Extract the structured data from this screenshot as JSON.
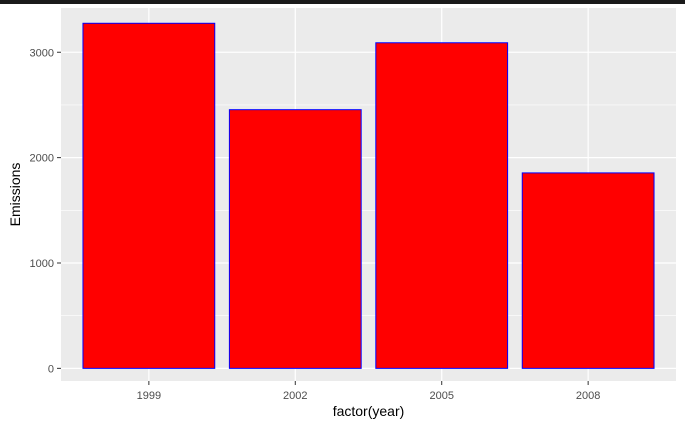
{
  "chart_data": {
    "type": "bar",
    "title": "",
    "xlabel": "factor(year)",
    "ylabel": "Emissions",
    "categories": [
      "1999",
      "2002",
      "2005",
      "2008"
    ],
    "values": [
      3275,
      2455,
      3090,
      1855
    ],
    "ylim": [
      -120,
      3420
    ],
    "yticks": [
      0,
      1000,
      2000,
      3000
    ],
    "grid": true,
    "legend": "none",
    "colors": {
      "bar_fill": "#ff0000",
      "bar_outline": "#0000ff",
      "panel_background": "#ebebeb",
      "grid_major": "#ffffff",
      "grid_minor": "#f5f5f5"
    }
  }
}
